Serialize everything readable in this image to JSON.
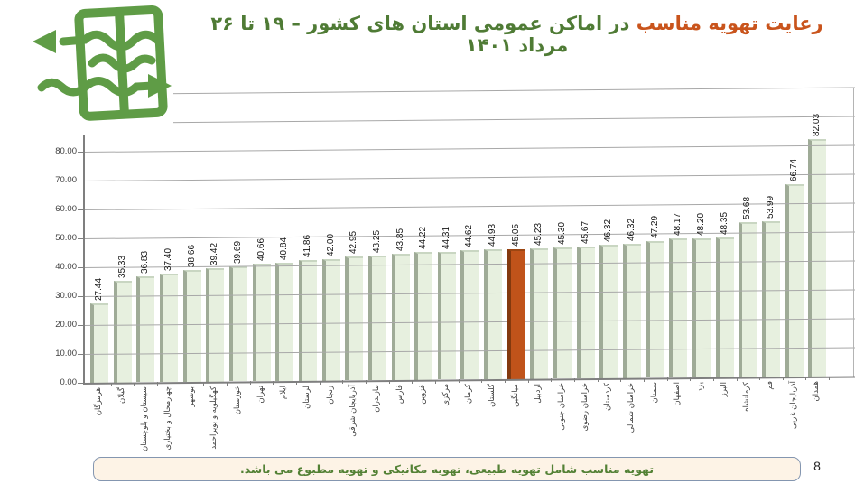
{
  "page": {
    "page_number": "8"
  },
  "header": {
    "title_highlight": "رعایت تهویه مناسب",
    "title_rest": "در اماکن عمومی استان های کشور  – ۱۹ تا ۲۶ مرداد ۱۴۰۱",
    "title_highlight_color": "#c9541c",
    "title_color": "#4f7b35"
  },
  "icon": {
    "name": "window-ventilation-icon",
    "color": "#5f9c46"
  },
  "footnote": {
    "text": "تهویه مناسب شامل تهویه طبیعی، تهویه مکانیکی و تهویه مطبوع می باشد.",
    "text_color": "#538135",
    "background": "#fdf3e6",
    "border_color": "#8496b0"
  },
  "chart_data": {
    "type": "bar",
    "title": "رعایت تهویه مناسب در اماکن عمومی استان های کشور – ۱۹ تا ۲۶ مرداد ۱۴۰۱",
    "categories": [
      "هرمزگان",
      "گیلان",
      "سیستان و بلوچستان",
      "چهارمحال و بختیاری",
      "بوشهر",
      "کهگیلویه و بویراحمد",
      "خوزستان",
      "تهران",
      "ایلام",
      "لرستان",
      "زنجان",
      "آذربایجان شرقی",
      "مازندران",
      "فارس",
      "قزوین",
      "مرکزی",
      "کرمان",
      "گلستان",
      "میانگین",
      "اردبیل",
      "خراسان جنوبی",
      "خراسان رضوی",
      "کردستان",
      "خراسان شمالی",
      "سمنان",
      "اصفهان",
      "یزد",
      "البرز",
      "کرمانشاه",
      "قم",
      "آذربایجان غربی",
      "همدان"
    ],
    "values": [
      27.44,
      35.33,
      36.83,
      37.4,
      38.66,
      39.42,
      39.69,
      40.66,
      40.84,
      41.86,
      42.0,
      42.95,
      43.25,
      43.85,
      44.22,
      44.31,
      44.62,
      44.93,
      45.05,
      45.23,
      45.3,
      45.67,
      46.32,
      46.32,
      47.29,
      48.17,
      48.2,
      48.35,
      53.68,
      53.99,
      66.74,
      82.03
    ],
    "highlight_index": 18,
    "highlight_label": "میانگین",
    "value_label_decimals": 2,
    "ylim": [
      0,
      100
    ],
    "ytick_step": 10,
    "ytick_labels": [
      "0.00",
      "10.00",
      "20.00",
      "30.00",
      "40.00",
      "50.00",
      "60.00",
      "70.00",
      "80.00"
    ],
    "xlabel": "",
    "ylabel": "",
    "legend": "none",
    "grid": true,
    "style_3d": true,
    "bar_color": "#e7f0df",
    "bar_side_color": "#9fab97",
    "bar_cap_color": "#c9d6c2",
    "highlight_color": "#c0531a",
    "highlight_side_color": "#83390e",
    "highlight_cap_color": "#9c4612",
    "gridline_color": "#a8a8a8",
    "axis_color": "#7f7f7f"
  }
}
